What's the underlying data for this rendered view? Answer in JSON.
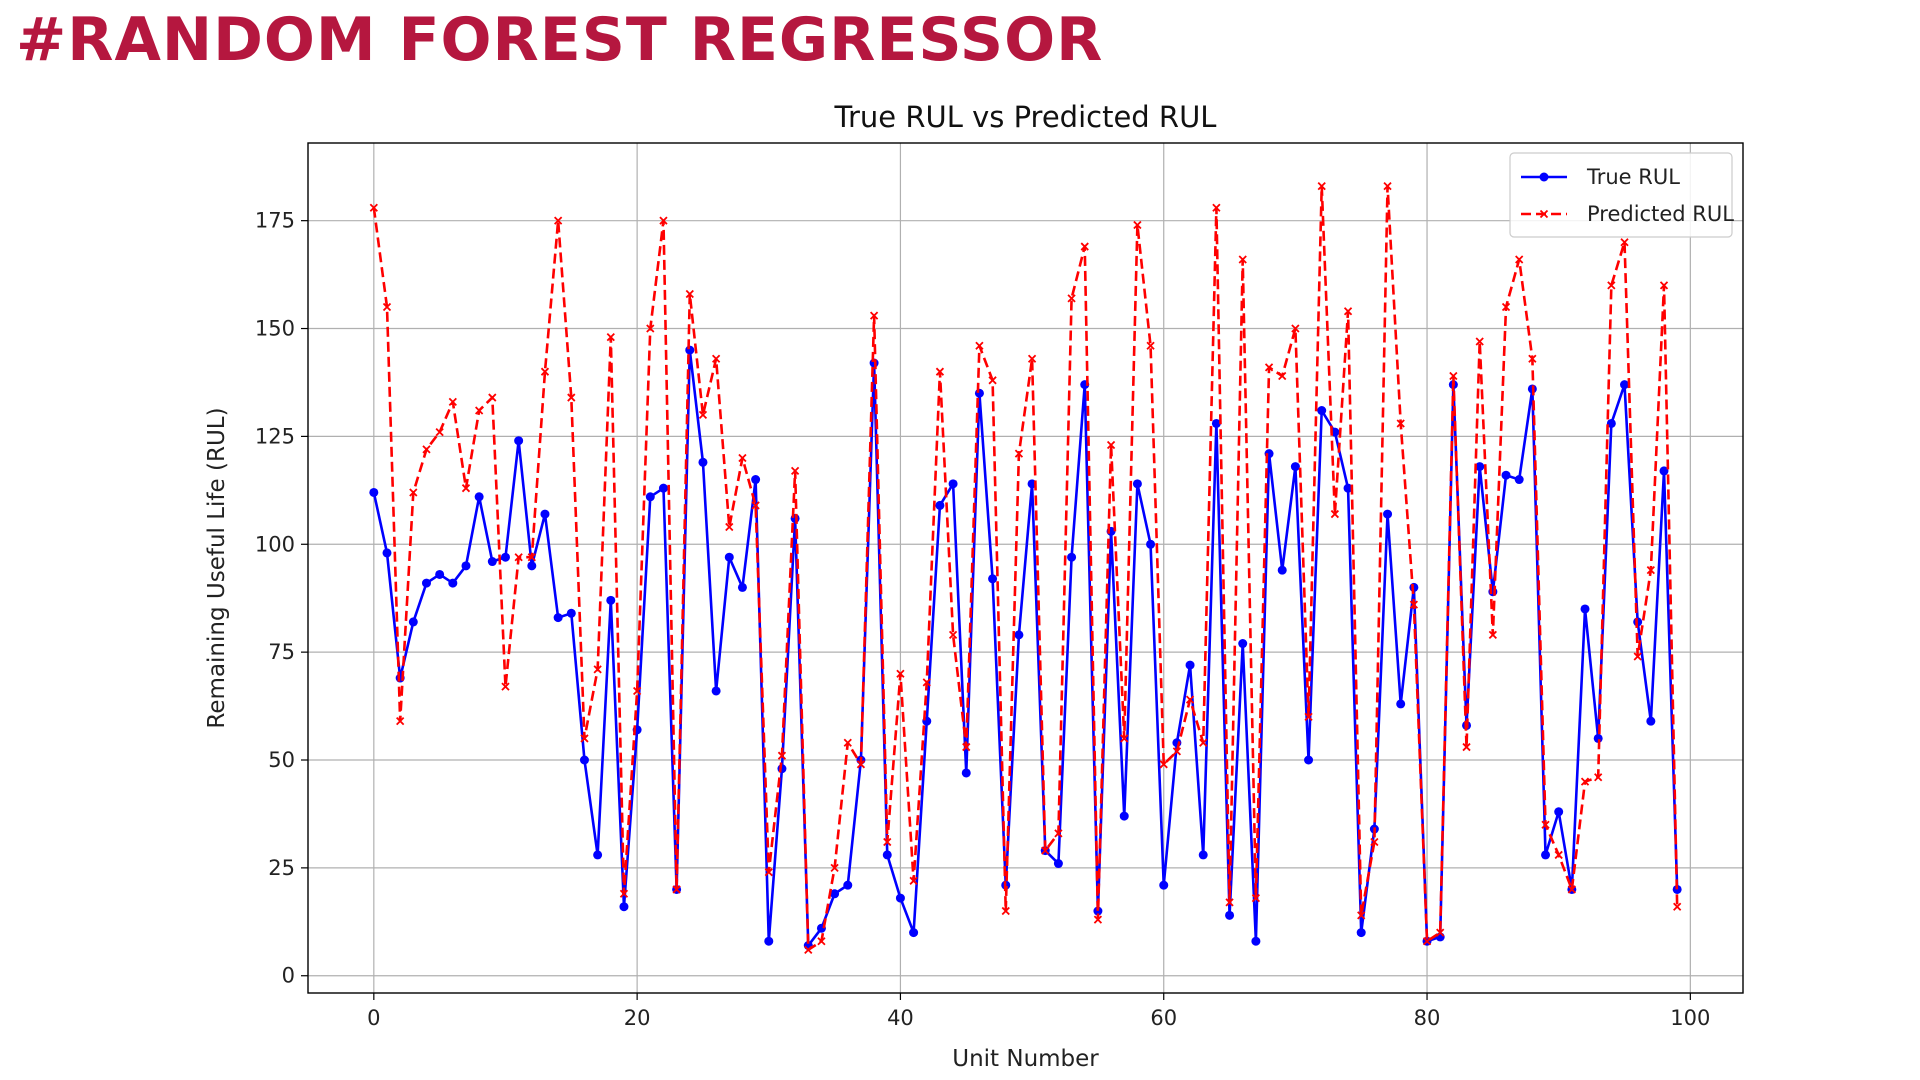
{
  "slide": {
    "title": "#RANDOM FOREST REGRESSOR"
  },
  "chart_data": {
    "type": "line",
    "title": "True RUL vs Predicted RUL",
    "xlabel": "Unit Number",
    "ylabel": "Remaining Useful Life (RUL)",
    "xlim": [
      -5,
      104
    ],
    "ylim": [
      -4,
      193
    ],
    "xticks": [
      0,
      20,
      40,
      60,
      80,
      100
    ],
    "yticks": [
      0,
      25,
      50,
      75,
      100,
      125,
      150,
      175
    ],
    "grid": true,
    "legend_position": "top-right",
    "x": [
      0,
      1,
      2,
      3,
      4,
      5,
      6,
      7,
      8,
      9,
      10,
      11,
      12,
      13,
      14,
      15,
      16,
      17,
      18,
      19,
      20,
      21,
      22,
      23,
      24,
      25,
      26,
      27,
      28,
      29,
      30,
      31,
      32,
      33,
      34,
      35,
      36,
      37,
      38,
      39,
      40,
      41,
      42,
      43,
      44,
      45,
      46,
      47,
      48,
      49,
      50,
      51,
      52,
      53,
      54,
      55,
      56,
      57,
      58,
      59,
      60,
      61,
      62,
      63,
      64,
      65,
      66,
      67,
      68,
      69,
      70,
      71,
      72,
      73,
      74,
      75,
      76,
      77,
      78,
      79,
      80,
      81,
      82,
      83,
      84,
      85,
      86,
      87,
      88,
      89,
      90,
      91,
      92,
      93,
      94,
      95,
      96,
      97,
      98,
      99
    ],
    "series": [
      {
        "name": "True RUL",
        "color": "#0000ff",
        "style": "solid",
        "marker": "dot",
        "values": [
          112,
          98,
          69,
          82,
          91,
          93,
          91,
          95,
          111,
          96,
          97,
          124,
          95,
          107,
          83,
          84,
          50,
          28,
          87,
          16,
          57,
          111,
          113,
          20,
          145,
          119,
          66,
          97,
          90,
          115,
          8,
          48,
          106,
          7,
          11,
          19,
          21,
          50,
          142,
          28,
          18,
          10,
          59,
          109,
          114,
          47,
          135,
          92,
          21,
          79,
          114,
          29,
          26,
          97,
          137,
          15,
          103,
          37,
          114,
          100,
          21,
          54,
          72,
          28,
          128,
          14,
          77,
          8,
          121,
          94,
          118,
          50,
          131,
          126,
          113,
          10,
          34,
          107,
          63,
          90,
          8,
          9,
          137,
          58,
          118,
          89,
          116,
          115,
          136,
          28,
          38,
          20,
          85,
          55,
          128,
          137,
          82,
          59,
          117,
          20
        ]
      },
      {
        "name": "Predicted RUL",
        "color": "#ff0000",
        "style": "dashed",
        "marker": "x",
        "values": [
          178,
          155,
          59,
          112,
          122,
          126,
          133,
          113,
          131,
          134,
          67,
          97,
          97,
          140,
          175,
          134,
          55,
          71,
          148,
          19,
          66,
          150,
          175,
          20,
          158,
          130,
          143,
          104,
          120,
          109,
          24,
          51,
          117,
          6,
          8,
          25,
          54,
          49,
          153,
          31,
          70,
          22,
          68,
          140,
          79,
          53,
          146,
          138,
          15,
          121,
          143,
          29,
          33,
          157,
          169,
          13,
          123,
          55,
          174,
          146,
          49,
          52,
          64,
          54,
          178,
          17,
          166,
          18,
          141,
          139,
          150,
          60,
          183,
          107,
          154,
          14,
          31,
          183,
          128,
          86,
          8,
          10,
          139,
          53,
          147,
          79,
          155,
          166,
          143,
          35,
          28,
          20,
          45,
          46,
          160,
          170,
          74,
          94,
          160,
          16
        ]
      }
    ]
  }
}
